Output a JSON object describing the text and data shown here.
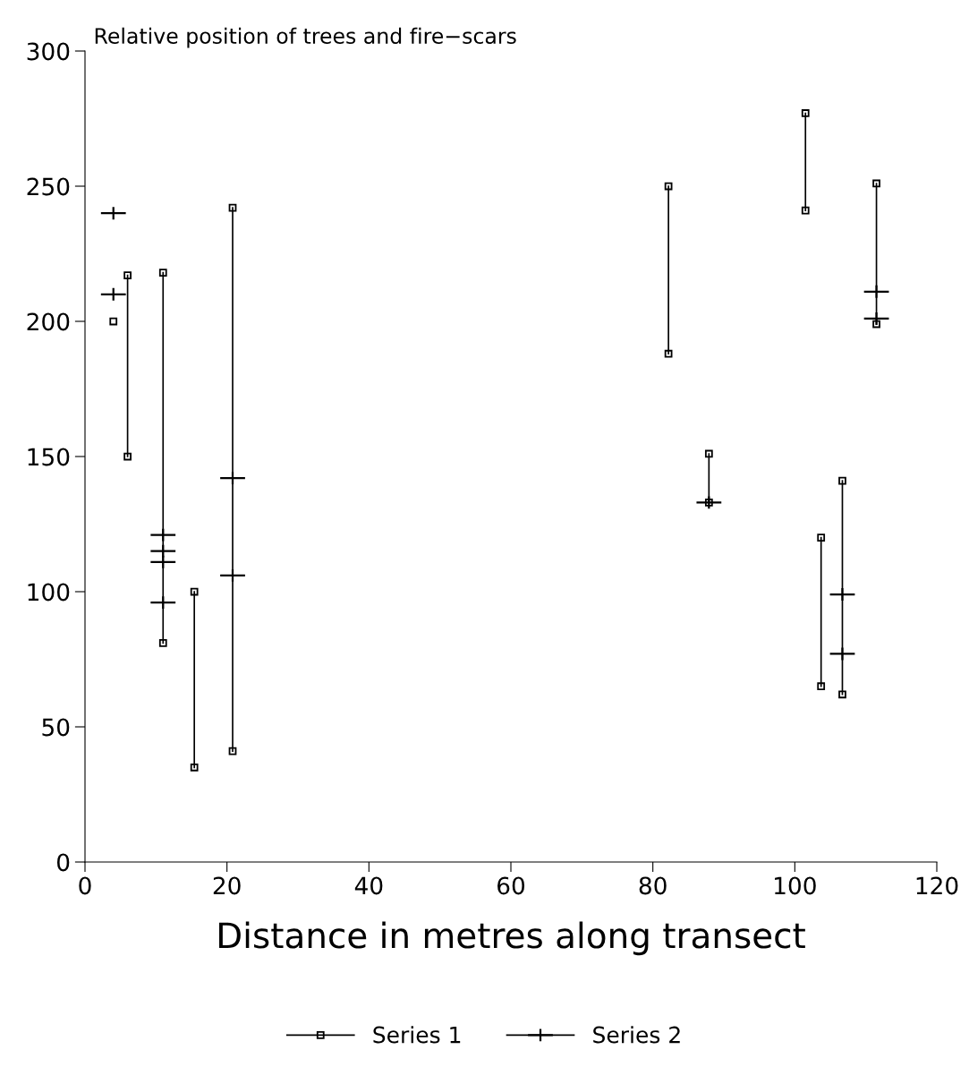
{
  "chart_data": {
    "type": "line",
    "title": "Relative position of trees and fire−scars",
    "xlabel": "Distance in metres along transect",
    "xlim": [
      0,
      120
    ],
    "xticks": [
      0,
      20,
      40,
      60,
      80,
      100,
      120
    ],
    "ylim": [
      0,
      300
    ],
    "yticks": [
      0,
      50,
      100,
      150,
      200,
      250,
      300
    ],
    "grid": false,
    "legend": "bottom",
    "series": [
      {
        "name": "Series 1",
        "color": "#000000",
        "marker": "square",
        "line_style": "solid",
        "x": [
          4,
          null,
          6,
          6,
          null,
          11,
          11,
          null,
          15.4,
          15.4,
          null,
          20.8,
          20.8,
          null,
          82.2,
          82.2,
          null,
          87.9,
          87.9,
          null,
          101.5,
          101.5,
          null,
          103.7,
          103.7,
          null,
          106.7,
          106.7,
          null,
          111.5,
          111.5
        ],
        "values": [
          200,
          null,
          217,
          150,
          null,
          218,
          81,
          null,
          100,
          35,
          null,
          242,
          41,
          null,
          250,
          188,
          null,
          151,
          133,
          null,
          277,
          241,
          null,
          120,
          65,
          null,
          141,
          62,
          null,
          251,
          199
        ]
      },
      {
        "name": "Series 2",
        "type": "scatter",
        "color": "#000000",
        "marker": "cross",
        "x": [
          4,
          4,
          11,
          11,
          11,
          11,
          20.8,
          20.8,
          87.9,
          106.7,
          106.7,
          111.5,
          111.5
        ],
        "values": [
          240,
          210,
          121,
          115,
          111,
          96,
          142,
          106,
          133,
          99,
          77,
          211,
          201
        ]
      }
    ]
  }
}
